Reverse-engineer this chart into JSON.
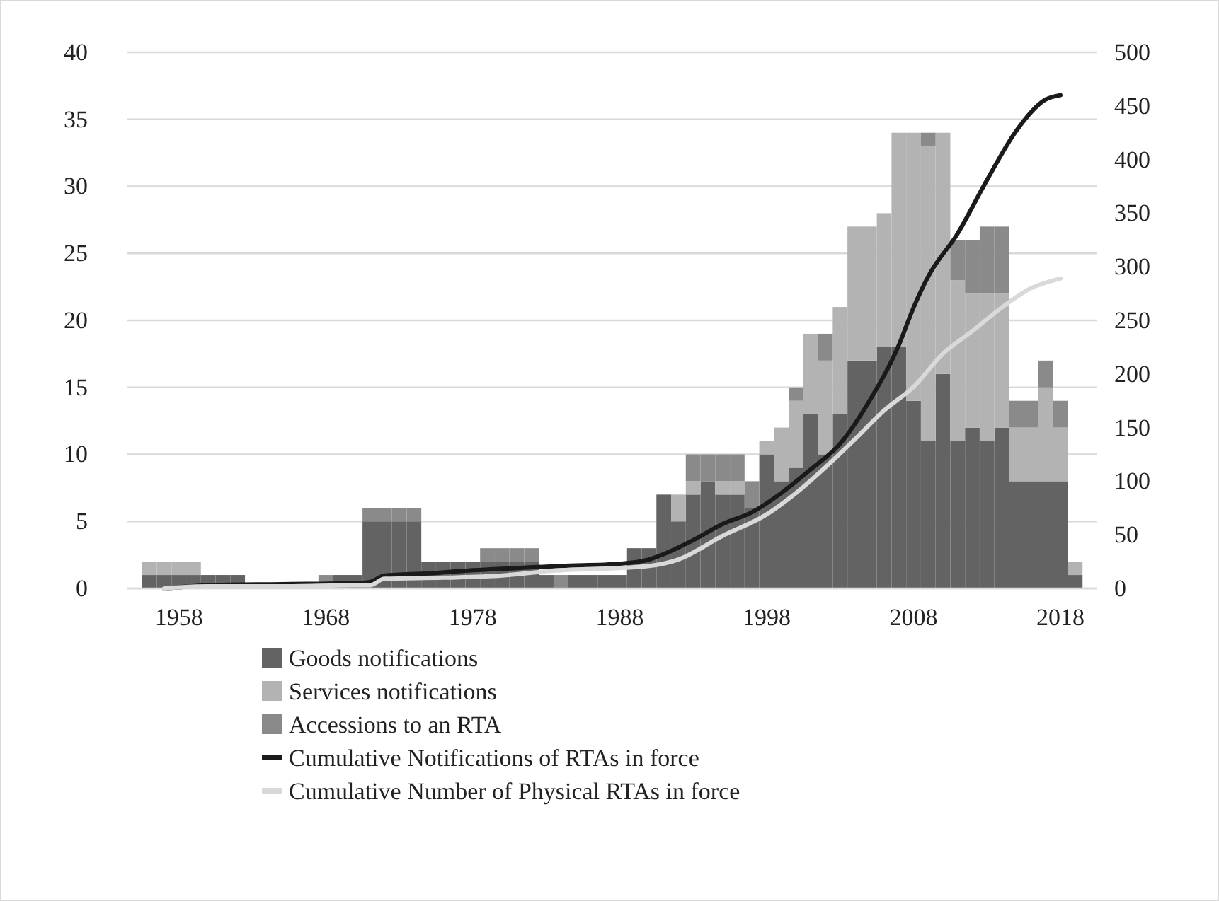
{
  "chart_data": {
    "type": "bar",
    "stacked": true,
    "grid": "y",
    "legend": "bottom",
    "xlim": [
      1954.5,
      2020.5
    ],
    "xticks": [
      1958,
      1968,
      1978,
      1988,
      1998,
      2008,
      2018
    ],
    "ylim": [
      0,
      40
    ],
    "yticks": [
      0,
      5,
      10,
      15,
      20,
      25,
      30,
      35,
      40
    ],
    "y2lim": [
      0,
      500
    ],
    "y2ticks": [
      0,
      50,
      100,
      150,
      200,
      250,
      300,
      350,
      400,
      450,
      500
    ],
    "x": [
      1956,
      1957,
      1958,
      1959,
      1960,
      1961,
      1962,
      1963,
      1964,
      1965,
      1966,
      1967,
      1968,
      1969,
      1970,
      1971,
      1972,
      1973,
      1974,
      1975,
      1976,
      1977,
      1978,
      1979,
      1980,
      1981,
      1982,
      1983,
      1984,
      1985,
      1986,
      1987,
      1988,
      1989,
      1990,
      1991,
      1992,
      1993,
      1994,
      1995,
      1996,
      1997,
      1998,
      1999,
      2000,
      2001,
      2002,
      2003,
      2004,
      2005,
      2006,
      2007,
      2008,
      2009,
      2010,
      2011,
      2012,
      2013,
      2014,
      2015,
      2016,
      2017,
      2018,
      2019
    ],
    "series": [
      {
        "name": "Goods notifications",
        "color": "#636363",
        "values": [
          1,
          1,
          1,
          1,
          1,
          1,
          1,
          0,
          0,
          0,
          0,
          0,
          0,
          1,
          1,
          5,
          5,
          5,
          5,
          2,
          2,
          2,
          2,
          2,
          2,
          2,
          2,
          1,
          0,
          1,
          1,
          1,
          1,
          3,
          3,
          7,
          5,
          7,
          8,
          7,
          7,
          6,
          10,
          8,
          9,
          13,
          10,
          13,
          17,
          17,
          18,
          18,
          14,
          11,
          16,
          11,
          12,
          11,
          12,
          8,
          8,
          8,
          8,
          1
        ]
      },
      {
        "name": "Services notifications",
        "color": "#b3b3b3",
        "values": [
          1,
          1,
          1,
          1,
          0,
          0,
          0,
          0,
          0,
          0,
          0,
          0,
          0,
          0,
          0,
          0,
          0,
          0,
          0,
          0,
          0,
          0,
          0,
          0,
          0,
          0,
          0,
          0,
          0,
          0,
          0,
          0,
          0,
          0,
          0,
          0,
          2,
          1,
          0,
          1,
          1,
          0,
          1,
          4,
          5,
          6,
          7,
          8,
          10,
          10,
          10,
          16,
          20,
          22,
          18,
          12,
          10,
          11,
          10,
          4,
          4,
          7,
          4,
          1
        ]
      },
      {
        "name": "Accessions to an RTA",
        "color": "#8a8a8a",
        "values": [
          0,
          0,
          0,
          0,
          0,
          0,
          0,
          0,
          0,
          0,
          0,
          0,
          1,
          0,
          0,
          1,
          1,
          1,
          1,
          0,
          0,
          0,
          0,
          1,
          1,
          1,
          1,
          0,
          1,
          0,
          0,
          0,
          0,
          0,
          0,
          0,
          0,
          2,
          2,
          2,
          2,
          2,
          0,
          0,
          1,
          0,
          2,
          0,
          0,
          0,
          0,
          0,
          0,
          1,
          0,
          3,
          4,
          5,
          5,
          2,
          2,
          2,
          2,
          0
        ]
      },
      {
        "name": "Cumulative Notifications of RTAs in force",
        "type": "line",
        "axis": "y2",
        "color": "#1a1a1a",
        "x": [
          1957,
          1958,
          1960,
          1965,
          1970,
          1971,
          1972,
          1975,
          1978,
          1981,
          1984,
          1988,
          1990,
          1991,
          1993,
          1995,
          1997,
          1999,
          2001,
          2003,
          2005,
          2007,
          2008,
          2009,
          2011,
          2013,
          2015,
          2017,
          2018
        ],
        "values": [
          0,
          1,
          3,
          4,
          5,
          6,
          12,
          14,
          17,
          19,
          21,
          23,
          27,
          32,
          45,
          60,
          71,
          89,
          111,
          135,
          175,
          227,
          262,
          291,
          331,
          381,
          427,
          456,
          460
        ]
      },
      {
        "name": "Cumulative Number of Physical RTAs in force",
        "type": "line",
        "axis": "y2",
        "color": "#d9d9d9",
        "x": [
          1957,
          1958,
          1960,
          1965,
          1970,
          1971,
          1972,
          1976,
          1980,
          1983,
          1990,
          1992,
          1995,
          1998,
          2000,
          2002,
          2004,
          2006,
          2008,
          2010,
          2012,
          2014,
          2016,
          2018
        ],
        "values": [
          0,
          1,
          2,
          2,
          3,
          3,
          9,
          10,
          12,
          16,
          21,
          27,
          49,
          69,
          89,
          113,
          139,
          166,
          188,
          219,
          240,
          262,
          280,
          289
        ]
      }
    ]
  }
}
